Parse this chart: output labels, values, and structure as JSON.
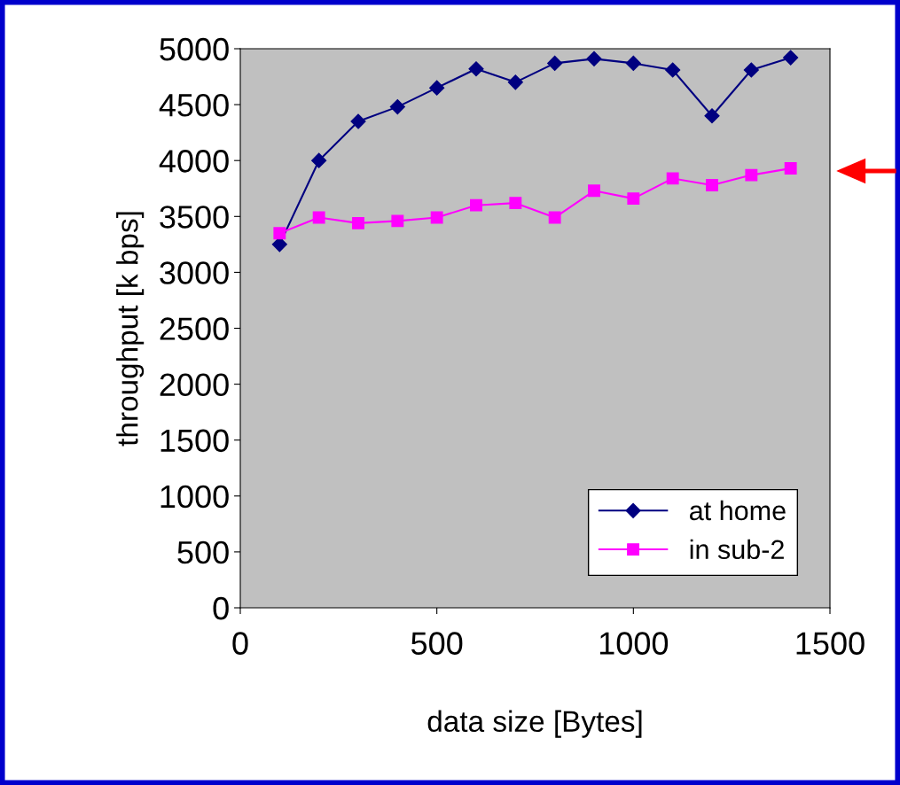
{
  "chart_data": {
    "type": "line",
    "xlabel": "data size [Bytes]",
    "ylabel": "throughput [k bps]",
    "x": [
      100,
      200,
      300,
      400,
      500,
      600,
      700,
      800,
      900,
      1000,
      1100,
      1200,
      1300,
      1400
    ],
    "series": [
      {
        "name": "at home",
        "color": "#000080",
        "marker": "diamond",
        "values": [
          3250,
          4000,
          4350,
          4480,
          4650,
          4820,
          4700,
          4870,
          4910,
          4870,
          4810,
          4400,
          4810,
          4920
        ]
      },
      {
        "name": "in sub-2",
        "color": "#ff00ff",
        "marker": "square",
        "values": [
          3350,
          3490,
          3440,
          3460,
          3490,
          3600,
          3620,
          3490,
          3730,
          3660,
          3840,
          3780,
          3870,
          3930
        ]
      }
    ],
    "xlim": [
      0,
      1500
    ],
    "xticks": [
      0,
      500,
      1000,
      1500
    ],
    "ylim": [
      0,
      5000
    ],
    "yticks": [
      0,
      500,
      1000,
      1500,
      2000,
      2500,
      3000,
      3500,
      4000,
      4500,
      5000
    ],
    "grid": false,
    "legend": "bottom right",
    "line_style": "solid"
  }
}
